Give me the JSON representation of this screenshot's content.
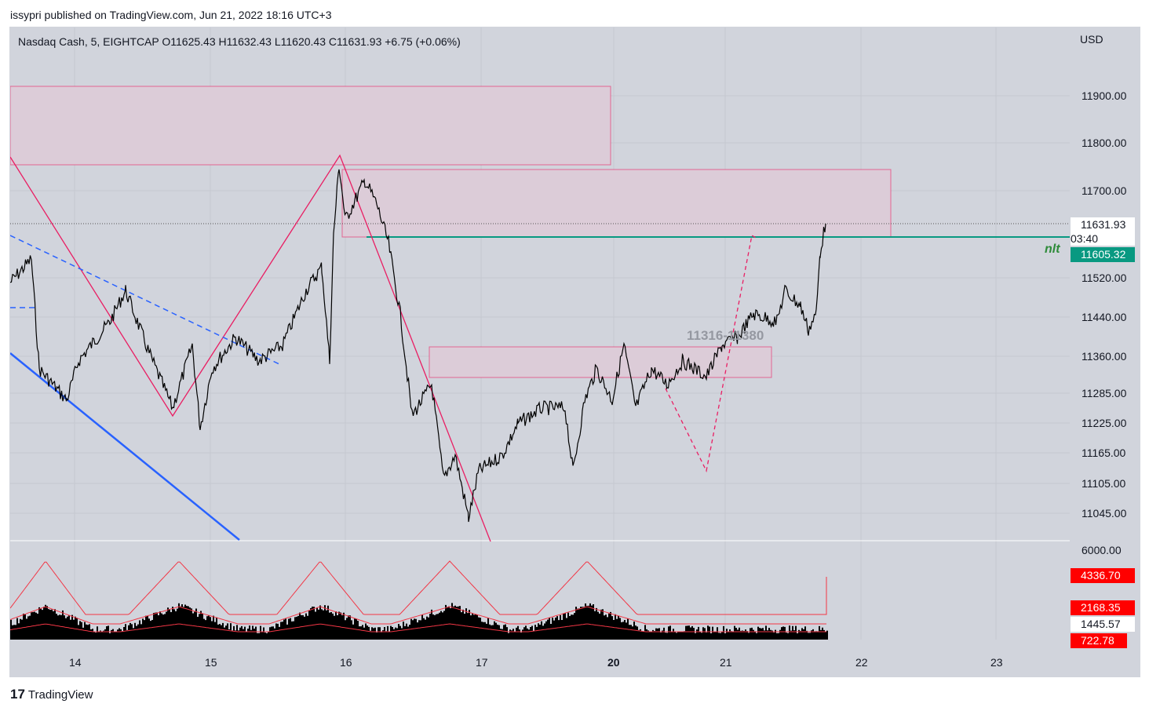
{
  "publisher": "issypri published on TradingView.com, Jun 21, 2022 18:16 UTC+3",
  "legend": "Nasdaq Cash, 5, EIGHTCAP  O11625.43  H11632.43  L11620.43  C11631.93  +6.75 (+0.06%)",
  "currency": "USD",
  "price_axis": [
    "11900.00",
    "11800.00",
    "11700.00",
    "11520.00",
    "11440.00",
    "11360.00",
    "11285.00",
    "11225.00",
    "11165.00",
    "11105.00",
    "11045.00"
  ],
  "last_price": "11631.93",
  "countdown": "03:40",
  "line_price": "11605.32",
  "line_label": "nlt",
  "zone_label": "11316-11380",
  "volume_axis": "6000.00",
  "volume_tags": {
    "v1": "4336.70",
    "v2": "2168.35",
    "v3": "1445.57",
    "v4": "722.78"
  },
  "time_axis": [
    "14",
    "15",
    "16",
    "17",
    "20",
    "21",
    "22",
    "23"
  ],
  "brand": "TradingView",
  "colors": {
    "green": "#089981",
    "red": "#ff0000",
    "pink": "#e91e63",
    "blue": "#2962ff"
  }
}
